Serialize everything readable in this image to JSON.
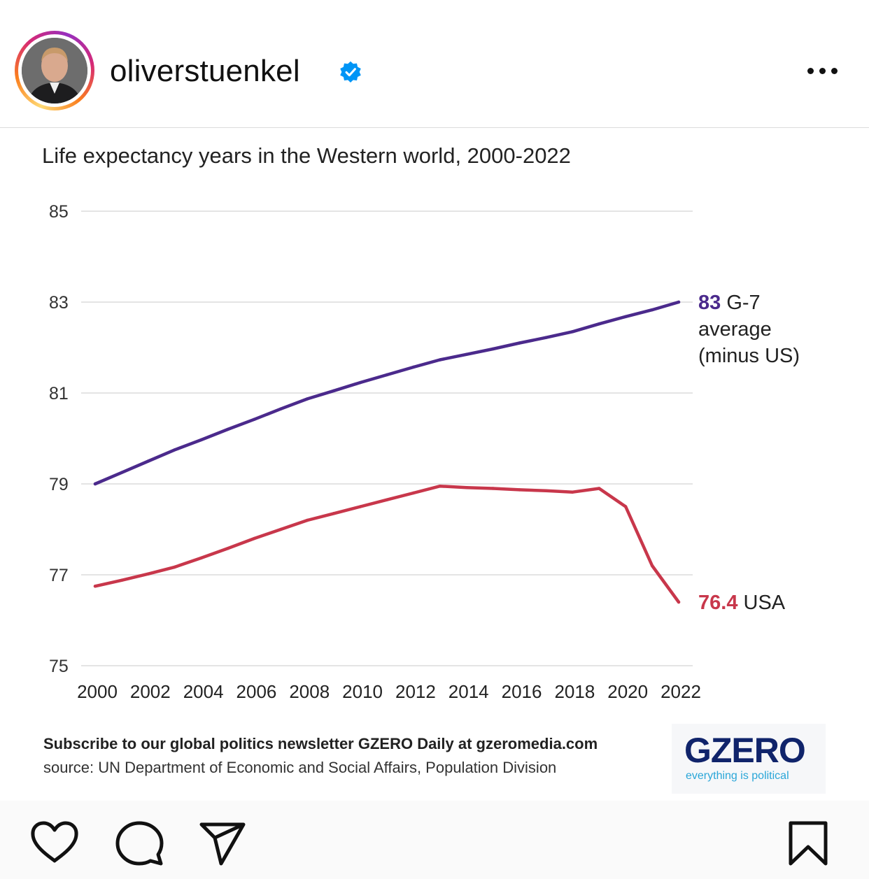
{
  "post": {
    "username": "oliverstuenkel",
    "verified": true,
    "avatar_icon": "profile-photo",
    "more_icon": "more-horizontal-icon"
  },
  "graphic": {
    "title": "Life expectancy years in the Western world, 2000-2022",
    "subscribe_text": "Subscribe to our global politics newsletter GZERO Daily at gzeromedia.com",
    "source_text": "source: UN Department of Economic and Social Affairs, Population Division",
    "logo_text": "GZERO",
    "logo_tagline": "everything is political"
  },
  "chart_data": {
    "type": "line",
    "title": "Life expectancy years in the Western world, 2000-2022",
    "xlabel": "",
    "ylabel": "",
    "ylim": [
      75,
      85
    ],
    "xlim": [
      2000,
      2022
    ],
    "yticks": [
      "85",
      "83",
      "81",
      "79",
      "77",
      "75"
    ],
    "xticks": [
      "2000",
      "2002",
      "2004",
      "2006",
      "2008",
      "2010",
      "2012",
      "2014",
      "2016",
      "2018",
      "2020",
      "2022"
    ],
    "grid": true,
    "legend": "none",
    "series": [
      {
        "key": "g7",
        "color": "#4b2a8c",
        "end_value_label": "83",
        "end_text_lines": [
          "G-7",
          "average",
          "(minus US)"
        ],
        "x": [
          2000,
          2001,
          2002,
          2003,
          2004,
          2005,
          2006,
          2007,
          2008,
          2009,
          2010,
          2011,
          2012,
          2013,
          2014,
          2015,
          2016,
          2017,
          2018,
          2019,
          2020,
          2021,
          2022
        ],
        "y": [
          79.0,
          79.25,
          79.5,
          79.75,
          79.97,
          80.2,
          80.42,
          80.65,
          80.87,
          81.05,
          81.23,
          81.4,
          81.57,
          81.73,
          81.85,
          81.97,
          82.1,
          82.22,
          82.35,
          82.52,
          82.68,
          82.83,
          83.0
        ]
      },
      {
        "key": "usa",
        "color": "#c8374b",
        "end_value_label": "76.4",
        "end_text_lines": [
          "USA"
        ],
        "x": [
          2000,
          2001,
          2002,
          2003,
          2004,
          2005,
          2006,
          2007,
          2008,
          2009,
          2010,
          2011,
          2012,
          2013,
          2014,
          2015,
          2016,
          2017,
          2018,
          2019,
          2020,
          2021,
          2022
        ],
        "y": [
          76.75,
          76.88,
          77.02,
          77.17,
          77.37,
          77.58,
          77.8,
          78.0,
          78.2,
          78.35,
          78.5,
          78.65,
          78.8,
          78.95,
          78.92,
          78.9,
          78.87,
          78.85,
          78.82,
          78.9,
          78.5,
          77.2,
          76.4
        ]
      }
    ]
  },
  "actions": {
    "like_icon": "heart-icon",
    "comment_icon": "comment-icon",
    "share_icon": "send-icon",
    "save_icon": "bookmark-icon"
  }
}
